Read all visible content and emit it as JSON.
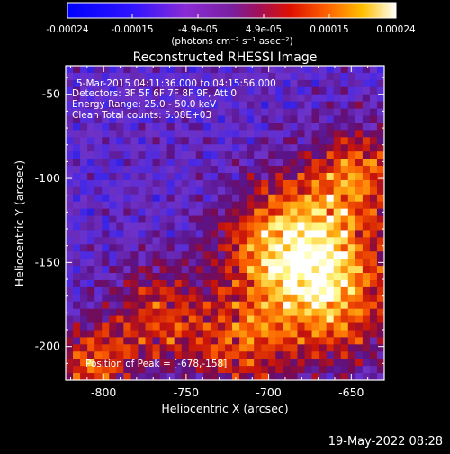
{
  "colorbar": {
    "ticks": [
      "-0.00024",
      "-0.00015",
      "-4.9e-05",
      "4.9e-05",
      "0.00015",
      "0.00024"
    ],
    "unit_label": "(photons cm⁻² s⁻¹ asec⁻²)",
    "range": [
      -0.00024,
      0.00024
    ]
  },
  "info": {
    "time": "5-Mar-2015 04:11:36.000 to 04:15:56.000",
    "detectors": "Detectors: 3F 5F 6F 7F 8F 9F, Att 0",
    "energy": "Energy Range: 25.0 - 50.0 keV",
    "clean": "Clean     Total counts: 5.08E+03",
    "peak": "Position of Peak = [-678,-158]"
  },
  "footer": {
    "date": "19-May-2022 08:28"
  },
  "chart_data": {
    "type": "heatmap",
    "title": "Reconstructed RHESSI Image",
    "xlabel": "Heliocentric X (arcsec)",
    "ylabel": "Heliocentric Y (arcsec)",
    "xlim": [
      -823,
      -630
    ],
    "ylim": [
      -220,
      -33
    ],
    "xticks": [
      -800,
      -750,
      -700,
      -650
    ],
    "yticks": [
      -50,
      -100,
      -150,
      -200
    ],
    "xtick_labels": [
      "-800",
      "-750",
      "-700",
      "-650"
    ],
    "ytick_labels": [
      "-50",
      "-100",
      "-150",
      "-200"
    ],
    "peak": [
      -678,
      -158
    ],
    "colormap": [
      "#0000ff",
      "#6020ff",
      "#8020c0",
      "#7020a0",
      "#a00060",
      "#e01000",
      "#ff6000",
      "#ffb000",
      "#ffff80",
      "#ffffff"
    ]
  }
}
